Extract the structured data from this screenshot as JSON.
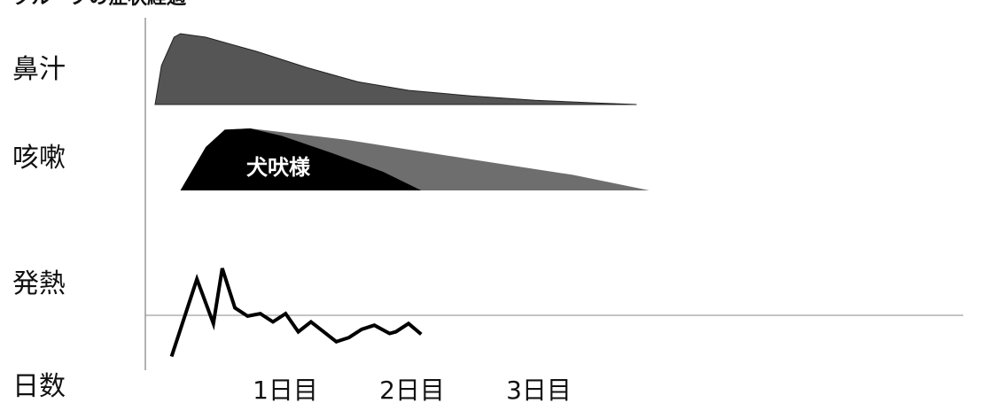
{
  "chart_data": {
    "type": "area",
    "title": "クループの症状経過",
    "x_label": "日数",
    "x_ticks": [
      {
        "day": 1,
        "label": "1日目"
      },
      {
        "day": 2,
        "label": "2日目"
      },
      {
        "day": 3,
        "label": "3日目"
      }
    ],
    "x_range_days": [
      0,
      3.8
    ],
    "rows": [
      {
        "label": "鼻汁"
      },
      {
        "label": "咳嗽",
        "inner_label": "犬吠様"
      },
      {
        "label": "発熱"
      }
    ],
    "series": [
      {
        "name": "鼻汁",
        "kind": "area",
        "color": "#555555",
        "points": [
          [
            0.0,
            0.0
          ],
          [
            0.05,
            0.55
          ],
          [
            0.15,
            0.95
          ],
          [
            0.2,
            1.0
          ],
          [
            0.4,
            0.95
          ],
          [
            0.8,
            0.75
          ],
          [
            1.2,
            0.52
          ],
          [
            1.6,
            0.32
          ],
          [
            2.0,
            0.2
          ],
          [
            2.5,
            0.12
          ],
          [
            3.0,
            0.06
          ],
          [
            3.5,
            0.02
          ],
          [
            3.8,
            0.0
          ]
        ]
      },
      {
        "name": "咳嗽",
        "kind": "area",
        "color": "#6e6e6e",
        "points": [
          [
            0.2,
            0.0
          ],
          [
            0.4,
            0.7
          ],
          [
            0.55,
            0.98
          ],
          [
            0.75,
            1.0
          ],
          [
            1.5,
            0.82
          ],
          [
            2.5,
            0.5
          ],
          [
            3.3,
            0.25
          ],
          [
            3.9,
            0.0
          ]
        ]
      },
      {
        "name": "犬吠様",
        "kind": "area",
        "color": "#000000",
        "points": [
          [
            0.2,
            0.0
          ],
          [
            0.4,
            0.7
          ],
          [
            0.55,
            0.98
          ],
          [
            0.75,
            1.0
          ],
          [
            1.0,
            0.88
          ],
          [
            1.4,
            0.6
          ],
          [
            1.8,
            0.3
          ],
          [
            2.1,
            0.0
          ]
        ]
      },
      {
        "name": "発熱",
        "kind": "line",
        "color": "#000000",
        "baseline": 0.55,
        "points": [
          [
            0.13,
            0.05
          ],
          [
            0.33,
            0.99
          ],
          [
            0.46,
            0.45
          ],
          [
            0.53,
            1.12
          ],
          [
            0.63,
            0.64
          ],
          [
            0.73,
            0.54
          ],
          [
            0.83,
            0.57
          ],
          [
            0.93,
            0.47
          ],
          [
            1.03,
            0.57
          ],
          [
            1.13,
            0.35
          ],
          [
            1.23,
            0.47
          ],
          [
            1.33,
            0.35
          ],
          [
            1.43,
            0.23
          ],
          [
            1.53,
            0.28
          ],
          [
            1.63,
            0.38
          ],
          [
            1.73,
            0.43
          ],
          [
            1.85,
            0.33
          ],
          [
            1.9,
            0.35
          ],
          [
            2.0,
            0.45
          ],
          [
            2.1,
            0.32
          ]
        ]
      }
    ],
    "grid": false,
    "legend": "none"
  }
}
